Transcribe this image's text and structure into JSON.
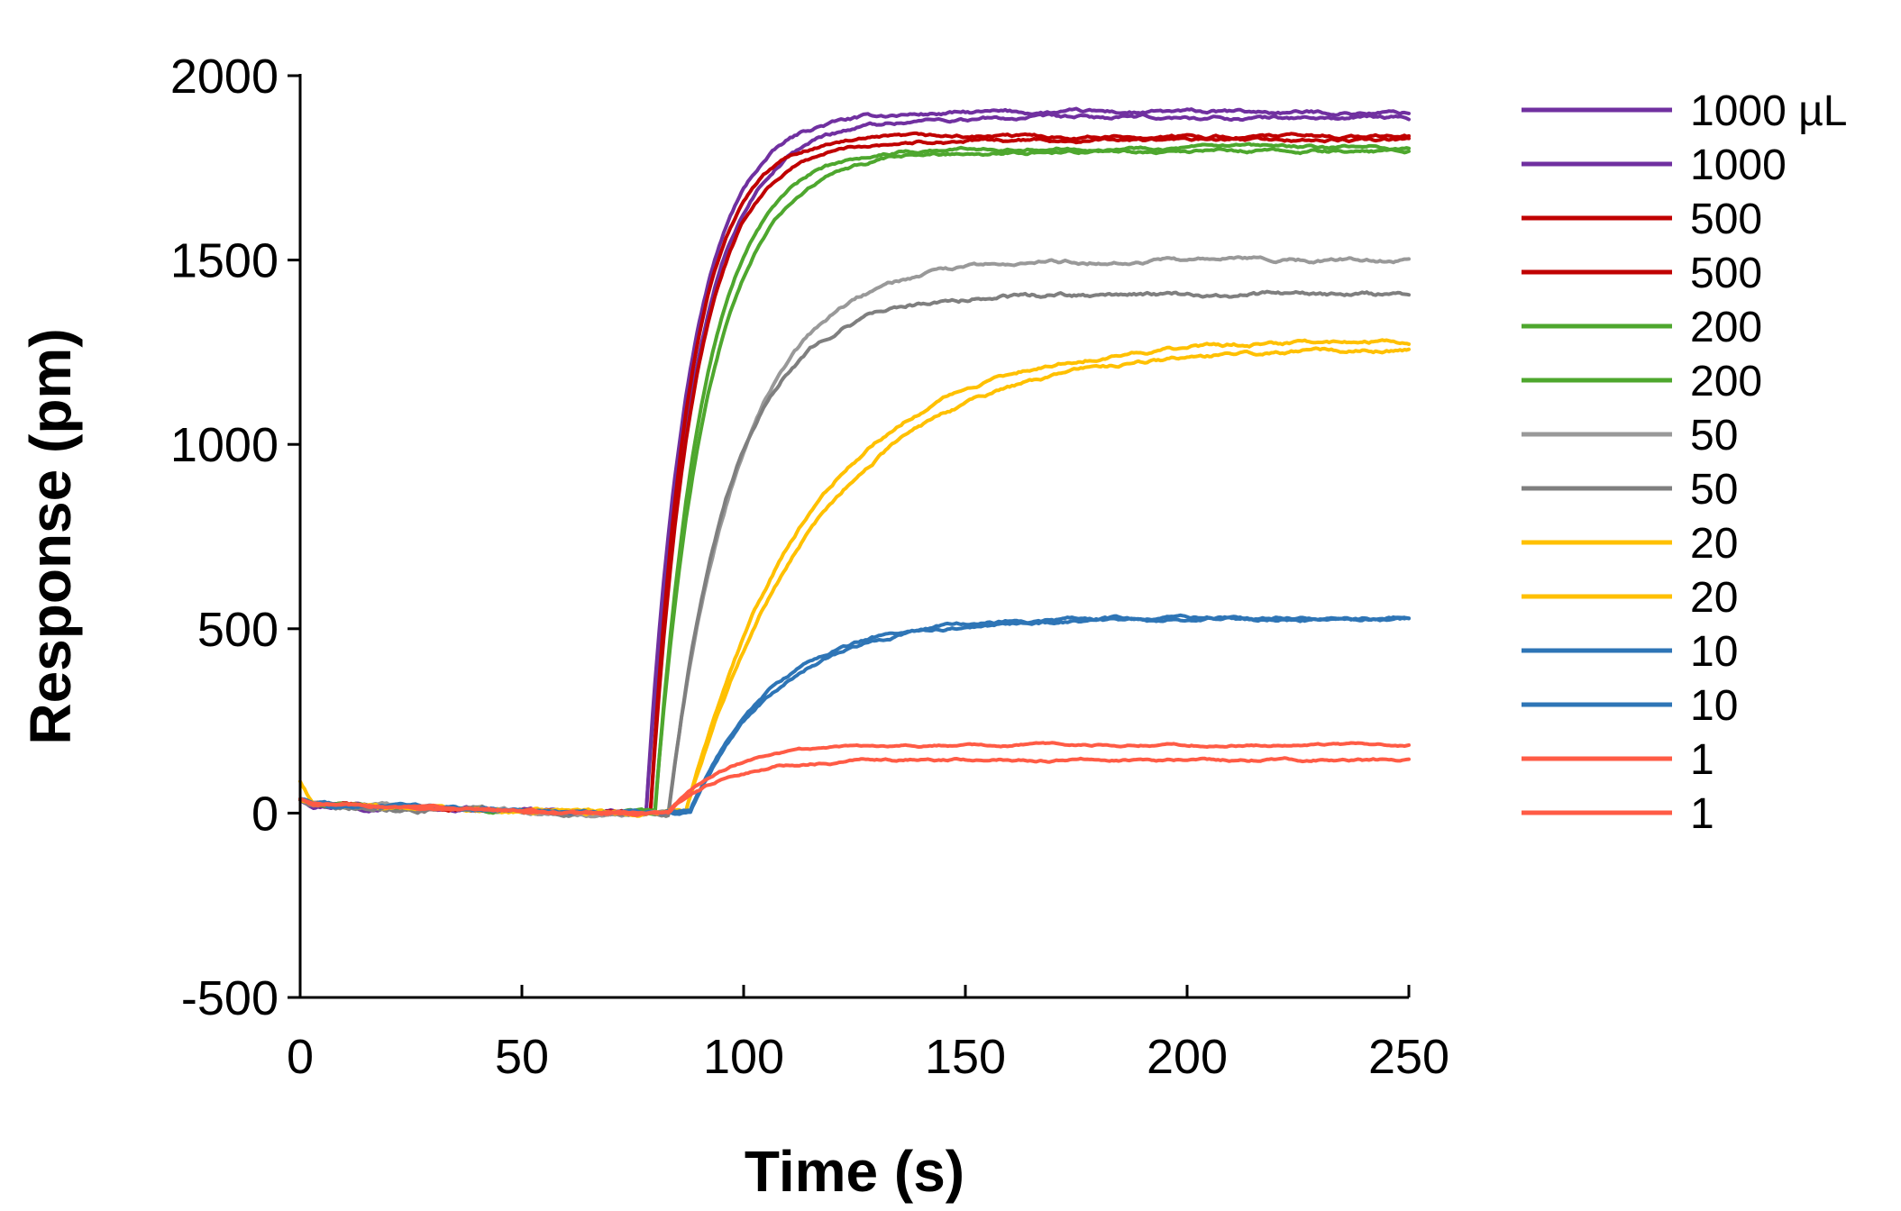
{
  "chart_data": {
    "type": "line",
    "title": "",
    "xlabel": "Time (s)",
    "ylabel": "Response (pm)",
    "xlim": [
      0,
      250
    ],
    "ylim": [
      -500,
      2000
    ],
    "xticks": [
      0,
      50,
      100,
      150,
      200,
      250
    ],
    "yticks": [
      -500,
      0,
      500,
      1000,
      1500,
      2000
    ],
    "grid": false,
    "legend_position": "right",
    "series": [
      {
        "name": "1000 µL",
        "color": "#7030A0",
        "onset": 78,
        "final": 1900,
        "tau": 10,
        "noise": 6
      },
      {
        "name": "1000",
        "color": "#7030A0",
        "onset": 78,
        "final": 1885,
        "tau": 11,
        "noise": 6
      },
      {
        "name": "500",
        "color": "#C00000",
        "onset": 79,
        "final": 1835,
        "tau": 9,
        "noise": 5
      },
      {
        "name": "500",
        "color": "#C00000",
        "onset": 79,
        "final": 1825,
        "tau": 10,
        "noise": 5
      },
      {
        "name": "200",
        "color": "#4EA72E",
        "onset": 80,
        "final": 1805,
        "tau": 11,
        "noise": 5
      },
      {
        "name": "200",
        "color": "#4EA72E",
        "onset": 80,
        "final": 1795,
        "tau": 12,
        "noise": 5
      },
      {
        "name": "50",
        "color": "#999999",
        "onset": 83,
        "final": 1500,
        "tau": 16,
        "noise": 6
      },
      {
        "name": "50",
        "color": "#7F7F7F",
        "onset": 83,
        "final": 1405,
        "tau": 14,
        "noise": 7
      },
      {
        "name": "20",
        "color": "#FFC000",
        "onset": 87,
        "final": 1285,
        "tau": 28,
        "noise": 6
      },
      {
        "name": "20",
        "color": "#FFC000",
        "onset": 87,
        "final": 1265,
        "tau": 30,
        "noise": 6
      },
      {
        "name": "10",
        "color": "#2E75B6",
        "onset": 88,
        "final": 530,
        "tau": 18,
        "noise": 5
      },
      {
        "name": "10",
        "color": "#2E75B6",
        "onset": 88,
        "final": 525,
        "tau": 19,
        "noise": 5
      },
      {
        "name": "1",
        "color": "#FF5B45",
        "onset": 83,
        "final": 185,
        "tau": 12,
        "noise": 3
      },
      {
        "name": "1",
        "color": "#FF5B45",
        "onset": 83,
        "final": 145,
        "tau": 12,
        "noise": 4
      }
    ]
  }
}
